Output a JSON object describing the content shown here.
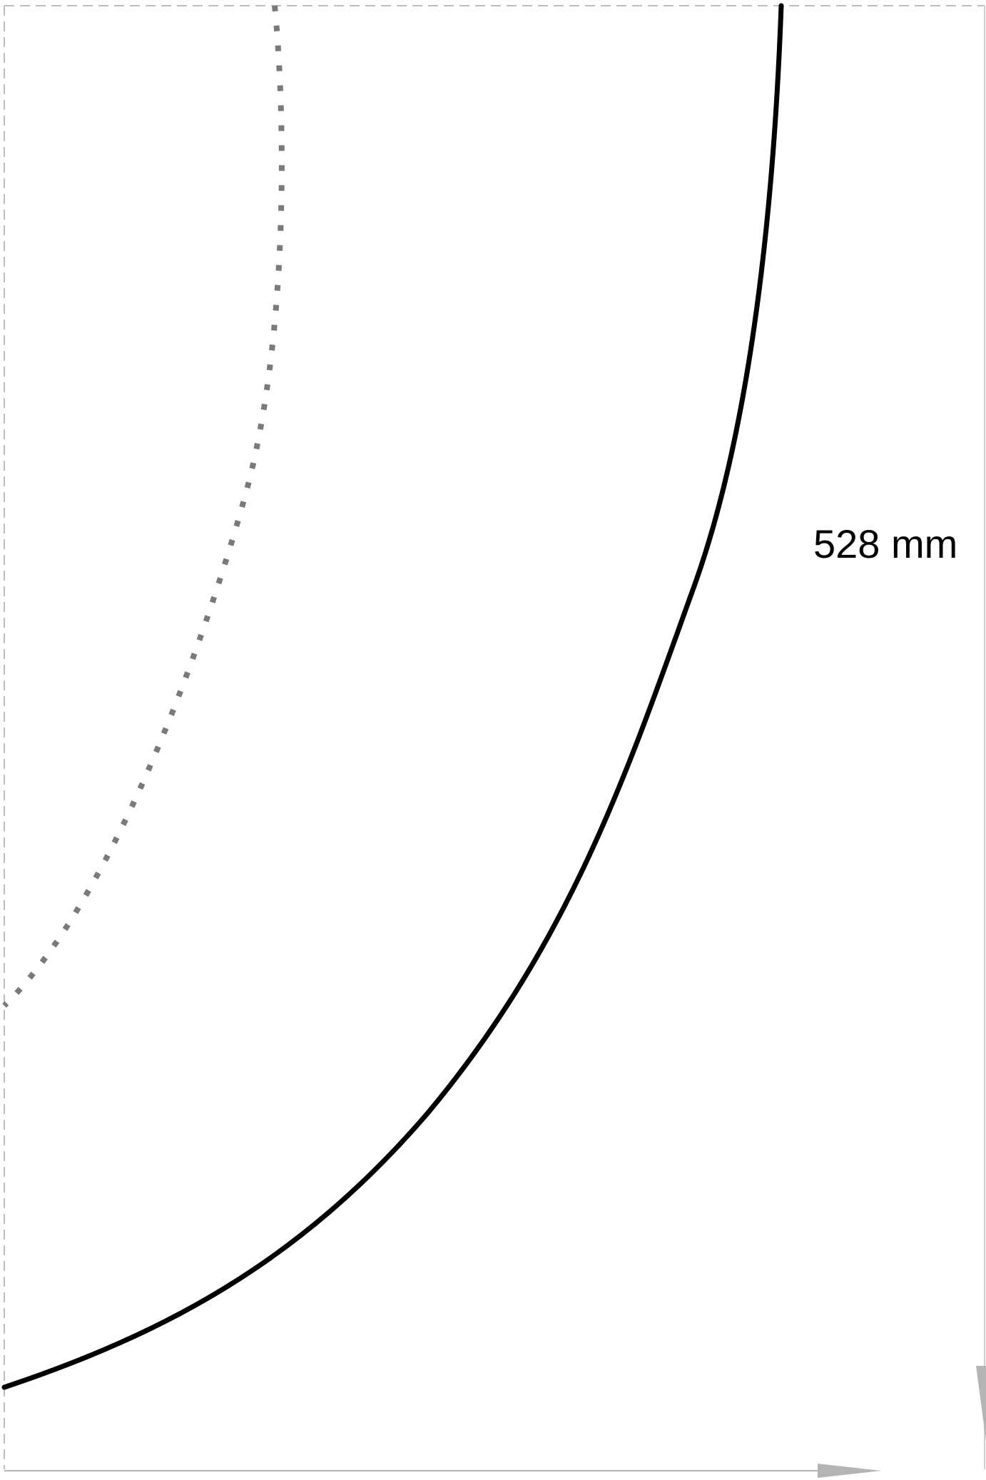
{
  "diagram": {
    "dimension_label": "528 mm",
    "colors": {
      "outer_curve": "#000000",
      "inner_dotted_curve": "#7a7a7a",
      "frame_dashed": "#bdbdbd",
      "arrows": "#b4b4b4"
    }
  }
}
